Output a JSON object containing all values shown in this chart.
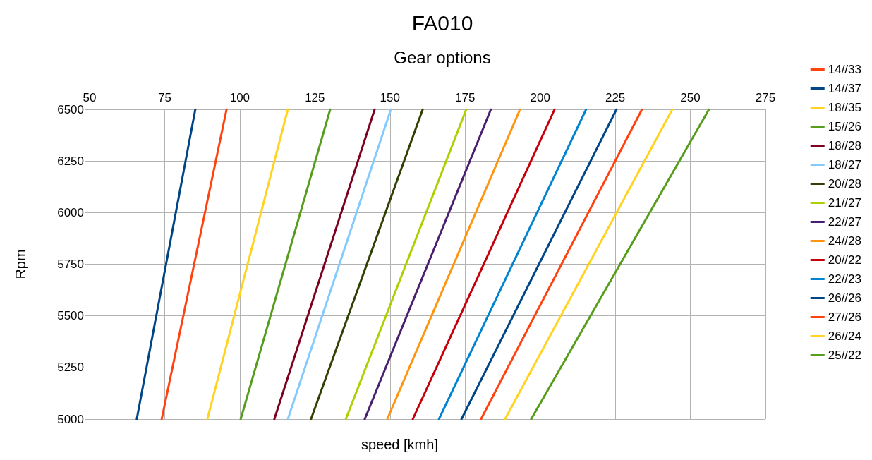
{
  "chart_data": {
    "type": "line",
    "title": "FA010",
    "subtitle": "Gear options",
    "xlabel": "speed [kmh]",
    "ylabel": "Rpm",
    "xlim": [
      50,
      275
    ],
    "xticks": [
      50,
      75,
      100,
      125,
      150,
      175,
      200,
      225,
      250,
      275
    ],
    "ylim": [
      5000,
      6500
    ],
    "yticks": [
      5000,
      5250,
      5500,
      5750,
      6000,
      6250,
      6500
    ],
    "grid": true,
    "legend": "right",
    "marker": "none",
    "line_style": "solid",
    "series": [
      {
        "name": "14//33",
        "color": "#ff420e",
        "x": [
          74.0,
          95.6
        ],
        "values": [
          5000,
          6500
        ]
      },
      {
        "name": "14//37",
        "color": "#004586",
        "x": [
          65.7,
          85.2
        ],
        "values": [
          5000,
          6500
        ]
      },
      {
        "name": "18//35",
        "color": "#ffd320",
        "x": [
          89.2,
          116.0
        ],
        "values": [
          5000,
          6500
        ]
      },
      {
        "name": "15//26",
        "color": "#579d1c",
        "x": [
          100.3,
          130.1
        ],
        "values": [
          5000,
          6500
        ]
      },
      {
        "name": "18//28",
        "color": "#7e0021",
        "x": [
          111.5,
          144.9
        ],
        "values": [
          5000,
          6500
        ]
      },
      {
        "name": "18//27",
        "color": "#83caff",
        "x": [
          116.0,
          150.3
        ],
        "values": [
          5000,
          6500
        ]
      },
      {
        "name": "20//28",
        "color": "#314004",
        "x": [
          123.7,
          160.9
        ],
        "values": [
          5000,
          6500
        ]
      },
      {
        "name": "21//27",
        "color": "#aecf00",
        "x": [
          135.3,
          175.4
        ],
        "values": [
          5000,
          6500
        ]
      },
      {
        "name": "22//27",
        "color": "#4b1f6f",
        "x": [
          141.6,
          183.6
        ],
        "values": [
          5000,
          6500
        ]
      },
      {
        "name": "24//28",
        "color": "#ff950e",
        "x": [
          149.1,
          193.3
        ],
        "values": [
          5000,
          6500
        ]
      },
      {
        "name": "20//22",
        "color": "#c5000b",
        "x": [
          157.6,
          204.8
        ],
        "values": [
          5000,
          6500
        ]
      },
      {
        "name": "22//23",
        "color": "#0084d1",
        "x": [
          166.3,
          215.3
        ],
        "values": [
          5000,
          6500
        ]
      },
      {
        "name": "26//26",
        "color": "#004586",
        "x": [
          173.8,
          225.4
        ],
        "values": [
          5000,
          6500
        ]
      },
      {
        "name": "27//26",
        "color": "#ff420e",
        "x": [
          180.3,
          233.9
        ],
        "values": [
          5000,
          6500
        ]
      },
      {
        "name": "26//24",
        "color": "#ffd320",
        "x": [
          188.3,
          244.0
        ],
        "values": [
          5000,
          6500
        ]
      },
      {
        "name": "25//22",
        "color": "#579d1c",
        "x": [
          197.0,
          256.2
        ],
        "values": [
          5000,
          6500
        ]
      }
    ]
  }
}
